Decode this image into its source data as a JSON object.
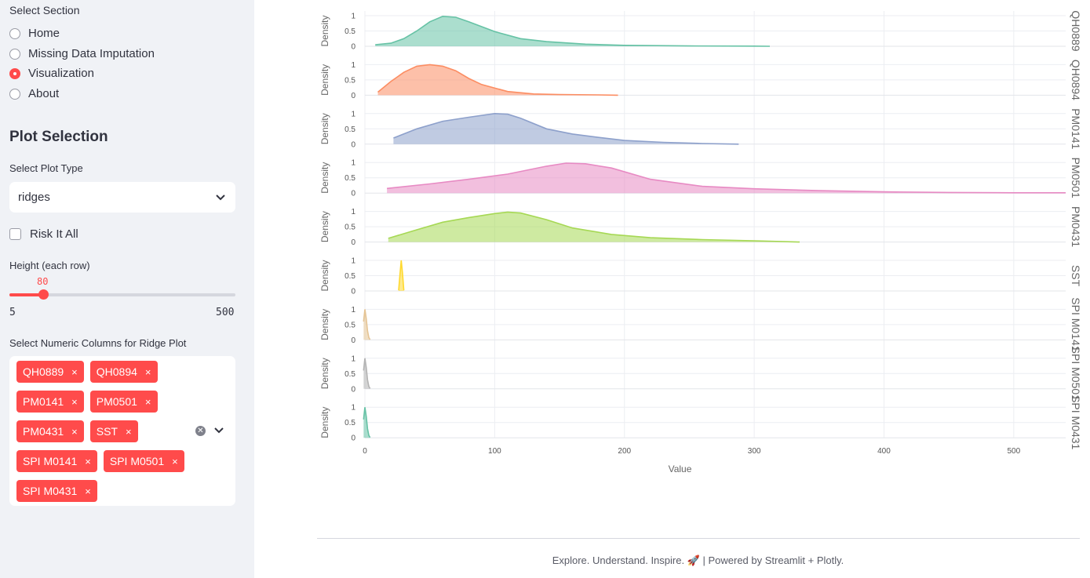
{
  "sidebar": {
    "section_label": "Select Section",
    "sections": [
      {
        "label": "Home",
        "checked": false
      },
      {
        "label": "Missing Data Imputation",
        "checked": false
      },
      {
        "label": "Visualization",
        "checked": true
      },
      {
        "label": "About",
        "checked": false
      }
    ],
    "plot_selection_title": "Plot Selection",
    "plot_type_label": "Select Plot Type",
    "plot_type_value": "ridges",
    "risk_label": "Risk It All",
    "height_label": "Height (each row)",
    "height_value": "80",
    "height_fraction": 0.151,
    "height_min": "5",
    "height_max": "500",
    "columns_label": "Select Numeric Columns for Ridge Plot",
    "columns": [
      "QH0889",
      "QH0894",
      "PM0141",
      "PM0501",
      "PM0431",
      "SST",
      "SPI M0141",
      "SPI M0501",
      "SPI M0431"
    ],
    "tag_remove": "×"
  },
  "footer": {
    "text": "Explore. Understand. Inspire. 🚀 | Powered by Streamlit + Plotly."
  },
  "chart_data": {
    "type": "area",
    "xlabel": "Value",
    "ylabel": "Density",
    "xlim": [
      0,
      540
    ],
    "ylim": [
      0,
      1
    ],
    "x_ticks": [
      0,
      100,
      200,
      300,
      400,
      500
    ],
    "y_ticks": [
      0,
      0.5,
      1
    ],
    "y_tick_labels": [
      "0",
      "0.5",
      "1"
    ],
    "series": [
      {
        "name": "QH0889",
        "color": "#66c2a5",
        "x": [
          8,
          20,
          30,
          40,
          50,
          60,
          70,
          80,
          100,
          120,
          140,
          170,
          200,
          250,
          300,
          312
        ],
        "y": [
          0.05,
          0.1,
          0.25,
          0.5,
          0.8,
          0.98,
          0.95,
          0.8,
          0.48,
          0.25,
          0.15,
          0.07,
          0.03,
          0.01,
          0.005,
          0.0
        ]
      },
      {
        "name": "QH0894",
        "color": "#fc8d62",
        "x": [
          10,
          20,
          30,
          40,
          50,
          60,
          70,
          80,
          90,
          110,
          130,
          150,
          180,
          195
        ],
        "y": [
          0.1,
          0.45,
          0.75,
          0.95,
          1.0,
          0.95,
          0.8,
          0.55,
          0.35,
          0.12,
          0.04,
          0.02,
          0.01,
          0.0
        ]
      },
      {
        "name": "PM0141",
        "color": "#8da0cb",
        "x": [
          22,
          40,
          60,
          80,
          100,
          110,
          120,
          140,
          160,
          180,
          200,
          230,
          260,
          288
        ],
        "y": [
          0.2,
          0.5,
          0.75,
          0.88,
          1.0,
          0.98,
          0.85,
          0.5,
          0.33,
          0.22,
          0.12,
          0.06,
          0.02,
          0.0
        ]
      },
      {
        "name": "PM0501",
        "color": "#e78ac3",
        "x": [
          17,
          50,
          80,
          110,
          140,
          155,
          170,
          190,
          220,
          260,
          300,
          350,
          400,
          450,
          500,
          540
        ],
        "y": [
          0.15,
          0.3,
          0.45,
          0.62,
          0.88,
          0.98,
          0.96,
          0.82,
          0.45,
          0.22,
          0.14,
          0.08,
          0.04,
          0.02,
          0.01,
          0.01
        ]
      },
      {
        "name": "PM0431",
        "color": "#a6d854",
        "x": [
          18,
          40,
          60,
          80,
          100,
          110,
          120,
          140,
          160,
          190,
          220,
          260,
          300,
          335
        ],
        "y": [
          0.12,
          0.4,
          0.65,
          0.8,
          0.93,
          0.98,
          0.95,
          0.73,
          0.46,
          0.25,
          0.14,
          0.08,
          0.04,
          0.0
        ]
      },
      {
        "name": "SST",
        "color": "#ffd92f",
        "x": [
          26,
          27,
          28,
          29,
          30
        ],
        "y": [
          0.02,
          0.55,
          1.0,
          0.55,
          0.02
        ]
      },
      {
        "name": "SPI M0141",
        "color": "#e5c494",
        "x": [
          -1,
          0,
          1,
          2,
          3,
          4
        ],
        "y": [
          0.6,
          1.0,
          0.7,
          0.3,
          0.08,
          0.01
        ]
      },
      {
        "name": "SPI M0501",
        "color": "#b3b3b3",
        "x": [
          -1,
          0,
          1,
          2,
          3,
          4
        ],
        "y": [
          0.6,
          1.0,
          0.7,
          0.3,
          0.08,
          0.01
        ]
      },
      {
        "name": "SPI M0431",
        "color": "#66c2a5",
        "x": [
          -1,
          0,
          1,
          2,
          3,
          4
        ],
        "y": [
          0.6,
          1.0,
          0.7,
          0.3,
          0.08,
          0.01
        ]
      }
    ]
  }
}
